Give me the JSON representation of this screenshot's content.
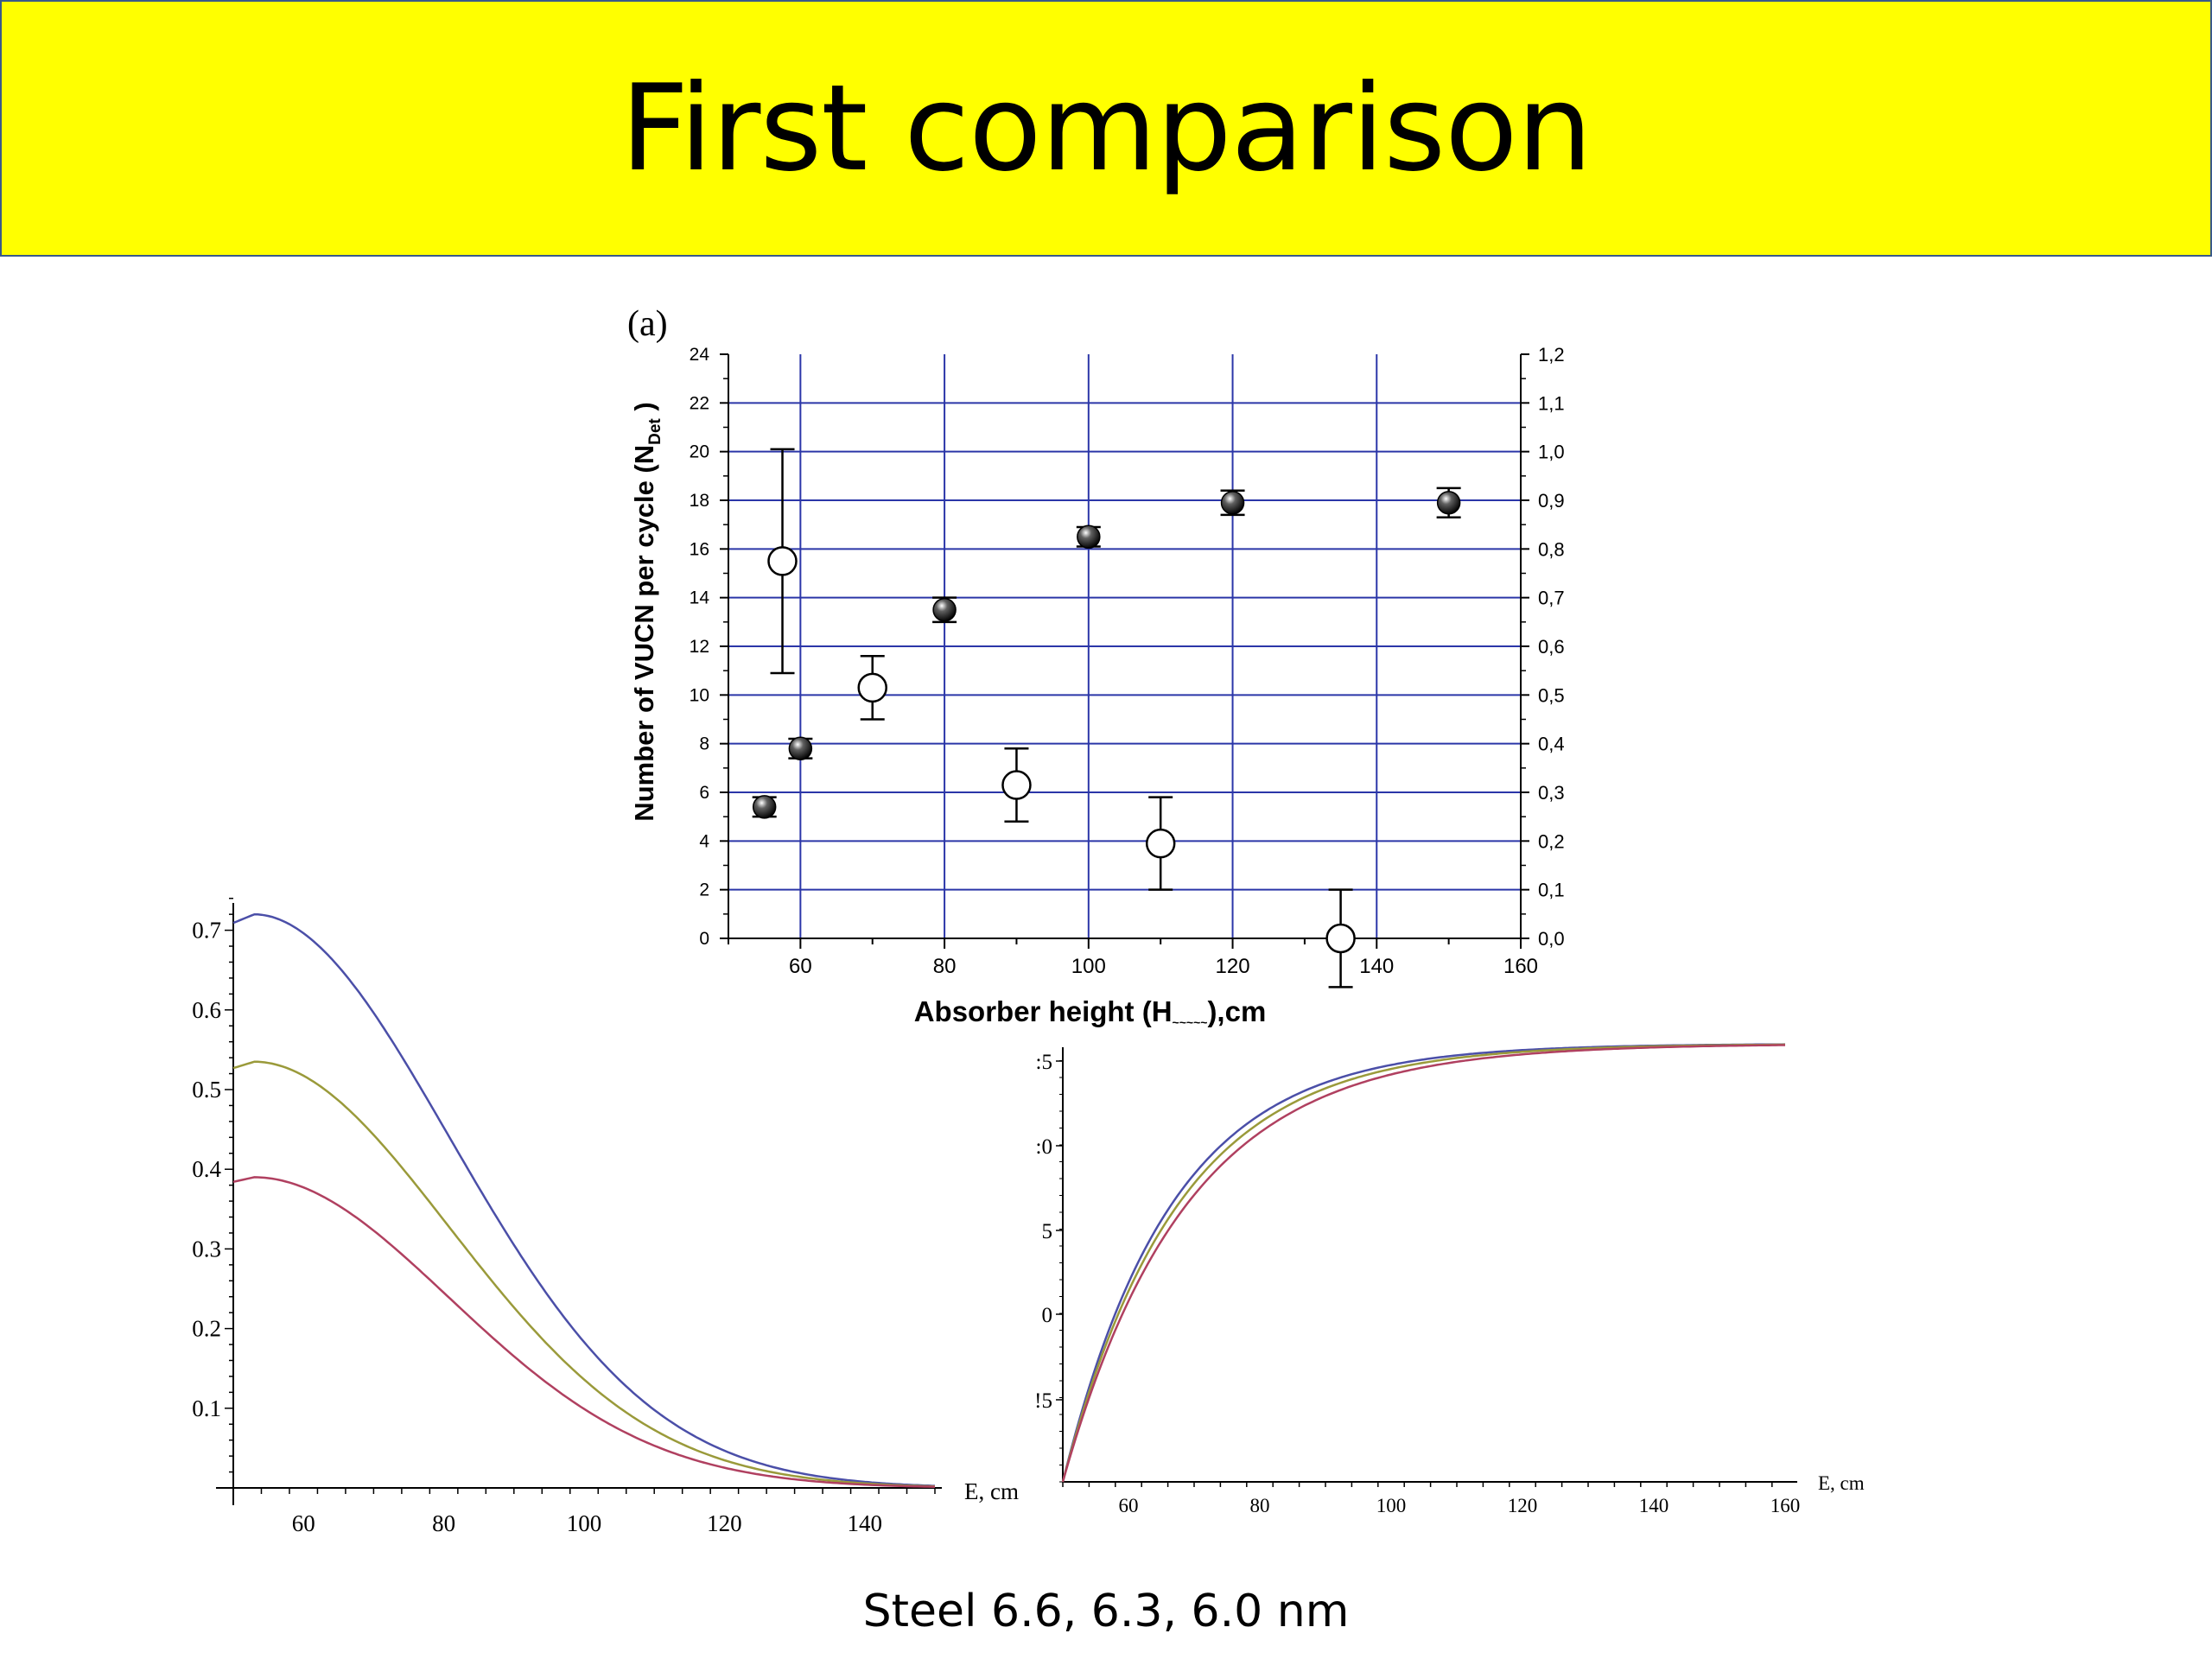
{
  "slide": {
    "title": "First comparison",
    "caption": "Steel 6.6, 6.3, 6.0 nm",
    "title_bg": "#ffff00"
  },
  "chart_data": [
    {
      "type": "scatter",
      "panel_label": "(a)",
      "xlabel": "Absorber height (H",
      "xlabel_tail": "),cm",
      "ylabel": "Number of VUCN per cycle (N",
      "ylabel_sub": "Det",
      "ylabel_tail": ")",
      "xlim": [
        50,
        160
      ],
      "ylim": [
        0,
        24
      ],
      "y2lim": [
        0,
        1.2
      ],
      "xticks": [
        "60",
        "80",
        "100",
        "120",
        "140",
        "160"
      ],
      "yticks": [
        "0",
        "2",
        "4",
        "6",
        "8",
        "10",
        "12",
        "14",
        "16",
        "18",
        "20",
        "22",
        "24"
      ],
      "y2ticks": [
        "0,0",
        "0,1",
        "0,2",
        "0,3",
        "0,4",
        "0,5",
        "0,6",
        "0,7",
        "0,8",
        "0,9",
        "1,0",
        "1,1",
        "1,2"
      ],
      "grid": true,
      "grid_color": "#2b36a8",
      "series": [
        {
          "marker": "filled",
          "points": [
            {
              "x": 55,
              "y": 5.4,
              "err": 0.4
            },
            {
              "x": 60,
              "y": 7.8,
              "err": 0.4
            },
            {
              "x": 80,
              "y": 13.5,
              "err": 0.5
            },
            {
              "x": 100,
              "y": 16.5,
              "err": 0.4
            },
            {
              "x": 120,
              "y": 17.9,
              "err": 0.5
            },
            {
              "x": 150,
              "y": 17.9,
              "err": 0.6
            }
          ]
        },
        {
          "marker": "open",
          "points": [
            {
              "x": 57.5,
              "y": 15.5,
              "err": 4.6
            },
            {
              "x": 70,
              "y": 10.3,
              "err": 1.3
            },
            {
              "x": 90,
              "y": 6.3,
              "err": 1.5
            },
            {
              "x": 110,
              "y": 3.9,
              "err": 1.9
            },
            {
              "x": 135,
              "y": 0.0,
              "err": 2.0
            }
          ]
        }
      ]
    },
    {
      "type": "line",
      "xlabel": "E, cm",
      "xlim": [
        50,
        150
      ],
      "ylim": [
        -0.02,
        0.75
      ],
      "xticks": [
        "60",
        "80",
        "100",
        "120",
        "140"
      ],
      "yticks": [
        "0.1",
        "0.2",
        "0.3",
        "0.4",
        "0.5",
        "0.6",
        "0.7"
      ],
      "series": [
        {
          "color": "#4b4fa8",
          "peak": 0.72
        },
        {
          "color": "#9a9a3a",
          "peak": 0.535
        },
        {
          "color": "#b04060",
          "peak": 0.39
        }
      ]
    },
    {
      "type": "line",
      "xlabel": "E, cm",
      "xlim": [
        50,
        160
      ],
      "xticks": [
        "60",
        "80",
        "100",
        "120",
        "140",
        "160"
      ],
      "yticks": [
        ":5",
        ":0",
        "5",
        "0",
        "!5"
      ],
      "series": [
        {
          "color": "#4b4fa8"
        },
        {
          "color": "#9a9a3a"
        },
        {
          "color": "#b04060"
        }
      ]
    }
  ]
}
